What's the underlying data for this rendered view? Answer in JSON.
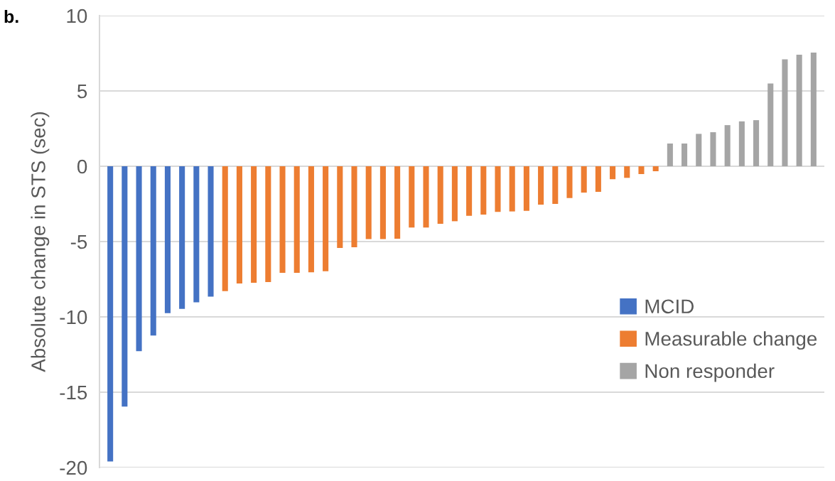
{
  "chart_data": {
    "type": "bar",
    "ylabel": "Absolute change in STS (sec)",
    "annotations": [
      "b."
    ],
    "categories": [
      null,
      null,
      null,
      null,
      null,
      null,
      null,
      null,
      null,
      null,
      null,
      null,
      null,
      null,
      null,
      null,
      null,
      null,
      null,
      null,
      null,
      null,
      null,
      null,
      null,
      null,
      null,
      null,
      null,
      null,
      null,
      null,
      null,
      null,
      null,
      null,
      null,
      null,
      null,
      null,
      null,
      null,
      null,
      null,
      null,
      null,
      null,
      null,
      null,
      null
    ],
    "series": [
      {
        "name": "MCID",
        "color": "#4472c4",
        "values": [
          -19.6,
          -15.96,
          -12.28,
          -11.24,
          -9.75,
          -9.47,
          -9.03,
          -8.66,
          null,
          null,
          null,
          null,
          null,
          null,
          null,
          null,
          null,
          null,
          null,
          null,
          null,
          null,
          null,
          null,
          null,
          null,
          null,
          null,
          null,
          null,
          null,
          null,
          null,
          null,
          null,
          null,
          null,
          null,
          null,
          null,
          null,
          null,
          null,
          null,
          null,
          null,
          null,
          null,
          null,
          null
        ]
      },
      {
        "name": "Measurable change",
        "color": "#ed7d31",
        "values": [
          null,
          null,
          null,
          null,
          null,
          null,
          null,
          null,
          -8.29,
          -7.78,
          -7.74,
          -7.69,
          -7.08,
          -7.07,
          -7.04,
          -6.97,
          -5.42,
          -5.38,
          -4.84,
          -4.84,
          -4.81,
          -4.07,
          -4.07,
          -3.82,
          -3.65,
          -3.29,
          -3.21,
          -3.03,
          -3.0,
          -2.96,
          -2.55,
          -2.5,
          -2.11,
          -1.75,
          -1.7,
          -0.86,
          -0.77,
          -0.52,
          -0.33,
          null,
          null,
          null,
          null,
          null,
          null,
          null,
          null,
          null,
          null,
          null
        ]
      },
      {
        "name": "Non responder",
        "color": "#a5a5a5",
        "values": [
          null,
          null,
          null,
          null,
          null,
          null,
          null,
          null,
          null,
          null,
          null,
          null,
          null,
          null,
          null,
          null,
          null,
          null,
          null,
          null,
          null,
          null,
          null,
          null,
          null,
          null,
          null,
          null,
          null,
          null,
          null,
          null,
          null,
          null,
          null,
          null,
          null,
          null,
          null,
          1.51,
          1.51,
          2.15,
          2.26,
          2.73,
          2.98,
          3.06,
          5.5,
          7.1,
          7.41,
          7.55
        ]
      }
    ],
    "ylim": [
      -20,
      10
    ],
    "yticks": [
      10,
      5,
      0,
      -5,
      -10,
      -15,
      -20
    ],
    "grid": "y",
    "legend": "bottom right",
    "tick_labels": "y"
  }
}
